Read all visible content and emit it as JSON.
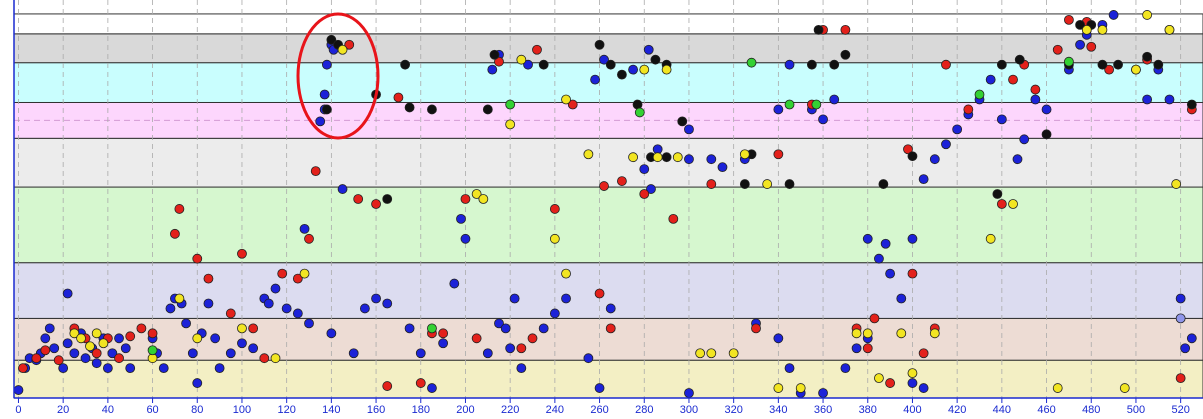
{
  "chart_data": {
    "type": "scatter",
    "xlim": [
      -2,
      530
    ],
    "ylim": [
      0,
      400
    ],
    "xticks": [
      0,
      20,
      40,
      60,
      80,
      100,
      120,
      140,
      160,
      180,
      200,
      220,
      240,
      260,
      280,
      300,
      320,
      340,
      360,
      380,
      400,
      420,
      440,
      460,
      480,
      500,
      520
    ],
    "grid": true,
    "refline": 279,
    "bands": [
      {
        "from": 0,
        "to": 38,
        "color": "#f3efc4"
      },
      {
        "from": 38,
        "to": 80,
        "color": "#eddcd4"
      },
      {
        "from": 80,
        "to": 136,
        "color": "#dcdcf0"
      },
      {
        "from": 136,
        "to": 212,
        "color": "#d6f7cf"
      },
      {
        "from": 212,
        "to": 261,
        "color": "#ececec"
      },
      {
        "from": 261,
        "to": 297,
        "color": "#fdd6fd"
      },
      {
        "from": 297,
        "to": 337,
        "color": "#c9fefe"
      },
      {
        "from": 337,
        "to": 366,
        "color": "#d9d9d9"
      },
      {
        "from": 366,
        "to": 386,
        "color": "#ffffff"
      }
    ],
    "series": [
      {
        "color": "#1c22d8",
        "x": [
          140,
          141,
          138,
          137,
          137,
          135,
          0,
          3,
          5,
          8,
          10,
          12,
          14,
          16,
          20,
          22,
          25,
          28,
          30,
          33,
          35,
          38,
          40,
          42,
          45,
          48,
          50,
          22,
          60,
          62,
          65,
          68,
          70,
          73,
          75,
          78,
          80,
          82,
          85,
          88,
          90,
          95,
          100,
          105,
          110,
          112,
          115,
          120,
          125,
          128,
          130,
          140,
          145,
          150,
          155,
          160,
          165,
          175,
          180,
          185,
          190,
          195,
          198,
          200,
          210,
          215,
          218,
          220,
          222,
          225,
          235,
          240,
          245,
          255,
          260,
          265,
          280,
          283,
          286,
          300,
          310,
          212,
          215,
          228,
          258,
          262,
          275,
          282,
          300,
          315,
          325,
          340,
          345,
          355,
          360,
          365,
          380,
          385,
          388,
          390,
          395,
          400,
          405,
          410,
          415,
          420,
          425,
          430,
          435,
          440,
          447,
          450,
          455,
          460,
          470,
          475,
          478,
          485,
          490,
          500,
          505,
          510,
          515,
          520,
          522,
          525,
          300,
          350,
          360,
          370,
          375,
          380,
          400,
          405,
          330,
          340,
          345
        ],
        "y": [
          355,
          350,
          335,
          305,
          290,
          278,
          8,
          30,
          40,
          38,
          45,
          60,
          70,
          50,
          30,
          55,
          45,
          65,
          40,
          50,
          35,
          60,
          30,
          45,
          60,
          50,
          30,
          105,
          60,
          45,
          30,
          90,
          100,
          95,
          75,
          45,
          15,
          65,
          95,
          60,
          30,
          45,
          55,
          50,
          100,
          95,
          110,
          90,
          85,
          170,
          75,
          65,
          210,
          45,
          90,
          100,
          95,
          70,
          45,
          10,
          55,
          115,
          180,
          160,
          45,
          75,
          70,
          50,
          100,
          30,
          70,
          85,
          100,
          40,
          10,
          90,
          230,
          210,
          250,
          240,
          240,
          330,
          345,
          335,
          320,
          340,
          330,
          350,
          270,
          232,
          240,
          290,
          335,
          290,
          280,
          300,
          160,
          140,
          155,
          125,
          100,
          160,
          220,
          240,
          255,
          270,
          285,
          300,
          320,
          280,
          240,
          260,
          300,
          290,
          330,
          355,
          365,
          375,
          385,
          330,
          300,
          330,
          300,
          100,
          50,
          60,
          5,
          5,
          5,
          30,
          50,
          60,
          15,
          10,
          75,
          60,
          30
        ]
      },
      {
        "color": "#e3211b",
        "x": [
          2,
          8,
          12,
          18,
          25,
          30,
          35,
          40,
          45,
          50,
          55,
          60,
          70,
          72,
          80,
          85,
          95,
          100,
          105,
          110,
          118,
          125,
          130,
          133,
          148,
          152,
          160,
          165,
          170,
          180,
          185,
          190,
          200,
          205,
          215,
          225,
          230,
          232,
          240,
          248,
          260,
          262,
          265,
          270,
          280,
          293,
          310,
          330,
          340,
          355,
          360,
          370,
          375,
          380,
          383,
          390,
          398,
          400,
          405,
          410,
          415,
          425,
          440,
          445,
          450,
          455,
          465,
          470,
          478,
          480,
          488,
          505,
          515,
          520,
          525
        ],
        "y": [
          30,
          40,
          48,
          38,
          70,
          60,
          45,
          60,
          40,
          62,
          70,
          65,
          165,
          190,
          140,
          120,
          85,
          145,
          70,
          40,
          125,
          120,
          160,
          228,
          355,
          200,
          195,
          12,
          302,
          15,
          65,
          65,
          200,
          60,
          338,
          50,
          60,
          350,
          190,
          295,
          105,
          213,
          70,
          218,
          205,
          180,
          215,
          70,
          245,
          295,
          370,
          370,
          70,
          50,
          80,
          15,
          250,
          125,
          45,
          70,
          335,
          290,
          195,
          320,
          335,
          310,
          350,
          380,
          378,
          353,
          330,
          340,
          370,
          20,
          290
        ]
      },
      {
        "color": "#111111",
        "x": [
          140,
          143,
          138,
          160,
          165,
          173,
          175,
          210,
          213,
          235,
          260,
          265,
          270,
          277,
          285,
          290,
          297,
          325,
          328,
          345,
          355,
          358,
          365,
          370,
          387,
          400,
          438,
          440,
          448,
          460,
          470,
          475,
          480,
          485,
          492,
          505,
          510,
          525,
          290,
          283,
          185
        ],
        "y": [
          360,
          355,
          290,
          305,
          200,
          335,
          292,
          290,
          345,
          335,
          355,
          335,
          325,
          295,
          340,
          335,
          278,
          215,
          245,
          215,
          335,
          370,
          335,
          345,
          215,
          243,
          205,
          335,
          340,
          265,
          335,
          375,
          375,
          335,
          335,
          343,
          335,
          295,
          242,
          242,
          290
        ]
      },
      {
        "color": "#f2e522",
        "x": [
          25,
          28,
          32,
          35,
          38,
          60,
          72,
          80,
          128,
          100,
          115,
          145,
          205,
          208,
          220,
          225,
          240,
          245,
          290,
          305,
          310,
          320,
          325,
          335,
          340,
          350,
          375,
          380,
          385,
          395,
          400,
          410,
          435,
          445,
          465,
          478,
          485,
          495,
          500,
          505,
          515,
          518,
          280,
          286,
          295,
          245,
          255,
          275
        ],
        "y": [
          65,
          60,
          52,
          65,
          55,
          40,
          100,
          60,
          125,
          70,
          40,
          350,
          205,
          200,
          275,
          340,
          160,
          125,
          330,
          45,
          45,
          45,
          245,
          215,
          10,
          10,
          65,
          65,
          20,
          65,
          25,
          65,
          160,
          195,
          10,
          370,
          370,
          10,
          330,
          385,
          370,
          215,
          330,
          242,
          242,
          300,
          245,
          242
        ]
      },
      {
        "color": "#33d133",
        "x": [
          60,
          185,
          220,
          278,
          328,
          345,
          357,
          430,
          470
        ],
        "y": [
          48,
          70,
          295,
          287,
          337,
          295,
          295,
          305,
          338
        ]
      },
      {
        "color": "#8f95ea",
        "x": [
          520
        ],
        "y": [
          80
        ]
      }
    ]
  }
}
